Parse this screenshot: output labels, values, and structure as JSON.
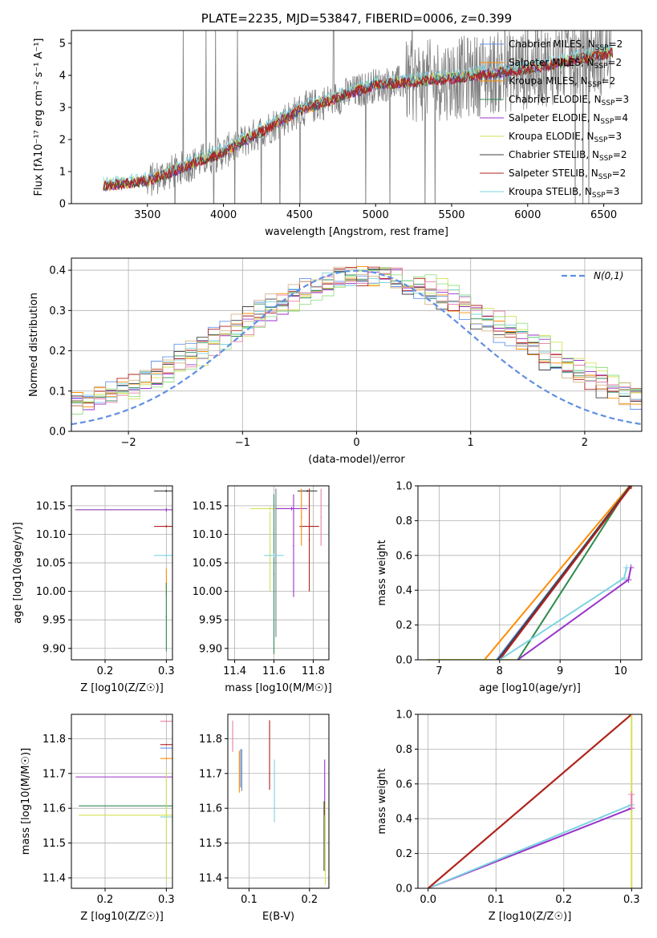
{
  "colors": {
    "series": [
      "#6495ed",
      "#708090",
      "#ff8c00",
      "#2e8b57",
      "#9932cc",
      "#d4e157",
      "#404040",
      "#b22222",
      "#7fd3e0"
    ],
    "spectrum": "#808080",
    "normal_curve": "#6090e0",
    "hist_extra": [
      "#e57fa8",
      "#98e08a",
      "#d2b48c"
    ]
  },
  "chart_data": [
    {
      "id": "spectrum",
      "type": "line",
      "title": "PLATE=2235, MJD=53847, FIBERID=0006, z=0.399",
      "xlabel": "wavelength [Angstrom, rest frame]",
      "ylabel_html": "Flux [fλ10⁻¹⁷ erg cm⁻² s⁻¹ A⁻¹]",
      "xlim": [
        3000,
        6750
      ],
      "ylim": [
        0,
        5.4
      ],
      "xticks": [
        "3500",
        "4000",
        "4500",
        "5000",
        "5500",
        "6000",
        "6500"
      ],
      "yticks": [
        "0",
        "1",
        "2",
        "3",
        "4",
        "5"
      ],
      "legend": [
        {
          "label": "Chabrier MILES, N",
          "sub": "SSP",
          "tail": "=2"
        },
        {
          "label": "Salpeter MILES, N",
          "sub": "SSP",
          "tail": "=2"
        },
        {
          "label": "Kroupa MILES, N",
          "sub": "SSP",
          "tail": "=2"
        },
        {
          "label": "Chabrier ELODIE, N",
          "sub": "SSP",
          "tail": "=3"
        },
        {
          "label": "Salpeter ELODIE, N",
          "sub": "SSP",
          "tail": "=4"
        },
        {
          "label": "Kroupa ELODIE, N",
          "sub": "SSP",
          "tail": "=3"
        },
        {
          "label": "Chabrier STELIB, N",
          "sub": "SSP",
          "tail": "=2"
        },
        {
          "label": "Salpeter STELIB, N",
          "sub": "SSP",
          "tail": "=2"
        },
        {
          "label": "Kroupa STELIB, N",
          "sub": "SSP",
          "tail": "=3"
        }
      ],
      "model_trend": {
        "x": [
          3210,
          3500,
          4000,
          4500,
          5000,
          5500,
          6000,
          6550
        ],
        "y": [
          0.55,
          0.7,
          1.6,
          2.9,
          3.7,
          3.9,
          4.2,
          4.7
        ]
      }
    },
    {
      "id": "residuals",
      "type": "line",
      "xlabel": "(data-model)/error",
      "ylabel": "Normed distribution",
      "xlim": [
        -2.5,
        2.5
      ],
      "ylim": [
        0,
        0.43
      ],
      "xticks": [
        "−2",
        "−1",
        "0",
        "1",
        "2"
      ],
      "yticks": [
        "0.0",
        "0.1",
        "0.2",
        "0.3",
        "0.4"
      ],
      "legend": "N(0,1)",
      "normal": {
        "mu": 0,
        "sigma": 1
      }
    },
    {
      "id": "age-vs-Z",
      "type": "scatter",
      "xlabel": "Z [log10(Z/Z☉)]",
      "ylabel": "age  [log10(age/yr)]",
      "xlim": [
        0.145,
        0.31
      ],
      "ylim": [
        9.88,
        10.185
      ],
      "xticks": [
        "0.2",
        "0.3"
      ],
      "yticks": [
        "9.90",
        "9.95",
        "10.00",
        "10.05",
        "10.10",
        "10.15"
      ],
      "errorbars": [
        {
          "c": 0,
          "x": 0.3,
          "y": 10.143,
          "xerr": 0.15,
          "yerr": 0.003
        },
        {
          "c": 5,
          "x": 0.3,
          "y": 10.143,
          "xerr": 0.15,
          "yerr": 0.003
        },
        {
          "c": 4,
          "x": 0.3,
          "y": 10.143,
          "xerr": 0.148,
          "yerr": 0.003
        },
        {
          "c": 6,
          "x": 0.3,
          "y": 10.176,
          "xerr": 0.02,
          "yerr": 0.002
        },
        {
          "c": 7,
          "x": 0.3,
          "y": 10.114,
          "xerr": 0.02,
          "yerr": 0.002
        },
        {
          "c": 8,
          "x": 0.3,
          "y": 10.063,
          "xerr": 0.02,
          "yerr": 0.002
        },
        {
          "c": 2,
          "x": 0.3,
          "y": 10.015,
          "xerr": 0.001,
          "yerr": 0.025
        },
        {
          "c": 3,
          "x": 0.3,
          "y": 9.955,
          "xerr": 0.001,
          "yerr": 0.06
        }
      ]
    },
    {
      "id": "age-vs-mass",
      "type": "scatter",
      "xlabel": "mass [log10(M/M☉)]",
      "ylabel": "",
      "xlim": [
        11.365,
        11.88
      ],
      "ylim": [
        9.88,
        10.185
      ],
      "xticks": [
        "11.4",
        "11.6",
        "11.8"
      ],
      "yticks": [
        "9.90",
        "9.95",
        "10.00",
        "10.05",
        "10.10",
        "10.15"
      ],
      "errorbars": [
        {
          "c": 5,
          "x": 11.58,
          "y": 10.145,
          "xerr": 0.1,
          "yerr": 0.003
        },
        {
          "c": 4,
          "x": 11.69,
          "y": 10.145,
          "xerr": 0.08,
          "yerr": 0.003
        },
        {
          "c": 1,
          "x": 11.61,
          "y": 10.05,
          "xerr": 0.003,
          "yerr": 0.13
        },
        {
          "c": 3,
          "x": 11.6,
          "y": 10.03,
          "xerr": 0.003,
          "yerr": 0.14
        },
        {
          "c": 5,
          "x": 11.58,
          "y": 10.07,
          "xerr": 0.003,
          "yerr": 0.07
        },
        {
          "c": 8,
          "x": 11.6,
          "y": 10.063,
          "xerr": 0.05,
          "yerr": 0.003
        },
        {
          "c": 4,
          "x": 11.7,
          "y": 10.08,
          "xerr": 0.003,
          "yerr": 0.09
        },
        {
          "c": 6,
          "x": 11.77,
          "y": 10.176,
          "xerr": 0.05,
          "yerr": 0.002
        },
        {
          "c": 7,
          "x": 11.78,
          "y": 10.114,
          "xerr": 0.05,
          "yerr": 0.002
        },
        {
          "c": 7,
          "x": 11.78,
          "y": 10.09,
          "xerr": 0.003,
          "yerr": 0.09
        },
        {
          "c": 9,
          "x": 11.84,
          "y": 10.13,
          "xerr": 0.003,
          "yerr": 0.05
        },
        {
          "c": 2,
          "x": 11.74,
          "y": 10.13,
          "xerr": 0.003,
          "yerr": 0.05
        }
      ]
    },
    {
      "id": "cumweight-vs-age",
      "type": "line",
      "xlabel": "age  [log10(age/yr)]",
      "ylabel": "mass weight",
      "xlim": [
        6.65,
        10.35
      ],
      "ylim": [
        0,
        1.0
      ],
      "xticks": [
        "7",
        "8",
        "9",
        "10"
      ],
      "yticks": [
        "0.0",
        "0.2",
        "0.4",
        "0.6",
        "0.8",
        "1.0"
      ],
      "lines": [
        {
          "c": 2,
          "x": [
            7.0,
            7.75,
            10.15
          ],
          "y": [
            0,
            0,
            1.0
          ]
        },
        {
          "c": 5,
          "x": [
            6.8,
            8.3,
            10.15
          ],
          "y": [
            0,
            0,
            1.0
          ]
        },
        {
          "c": 3,
          "x": [
            8.3,
            10.15
          ],
          "y": [
            0,
            1.0
          ]
        },
        {
          "c": 0,
          "x": [
            7.95,
            10.16
          ],
          "y": [
            0,
            1.0
          ]
        },
        {
          "c": 6,
          "x": [
            7.97,
            10.16
          ],
          "y": [
            0,
            1.0
          ]
        },
        {
          "c": 7,
          "x": [
            8.0,
            10.18
          ],
          "y": [
            0,
            1.0
          ]
        },
        {
          "c": 8,
          "x": [
            8.0,
            10.06
          ],
          "y": [
            0,
            0.47
          ]
        },
        {
          "c": 4,
          "x": [
            8.3,
            10.13
          ],
          "y": [
            0,
            0.46
          ]
        },
        {
          "c": 4,
          "x": [
            10.13,
            10.17
          ],
          "y": [
            0.46,
            0.53
          ]
        },
        {
          "c": 8,
          "x": [
            10.06,
            10.1
          ],
          "y": [
            0.47,
            0.53
          ]
        }
      ]
    },
    {
      "id": "mass-vs-Z",
      "type": "scatter",
      "xlabel": "Z [log10(Z/Z☉)]",
      "ylabel": "mass [log10(M/M☉)]",
      "xlim": [
        0.145,
        0.31
      ],
      "ylim": [
        11.37,
        11.87
      ],
      "xticks": [
        "0.2",
        "0.3"
      ],
      "yticks": [
        "11.4",
        "11.5",
        "11.6",
        "11.7",
        "11.8"
      ],
      "errorbars": [
        {
          "c": 4,
          "x": 0.3,
          "y": 11.69,
          "xerr": 0.148,
          "yerr": 0.003
        },
        {
          "c": 3,
          "x": 0.3,
          "y": 11.607,
          "xerr": 0.143,
          "yerr": 0.003
        },
        {
          "c": 5,
          "x": 0.3,
          "y": 11.58,
          "xerr": 0.143,
          "yerr": 0.003
        },
        {
          "c": 9,
          "x": 0.3,
          "y": 11.85,
          "xerr": 0.01,
          "yerr": 0.002
        },
        {
          "c": 7,
          "x": 0.3,
          "y": 11.783,
          "xerr": 0.01,
          "yerr": 0.002
        },
        {
          "c": 0,
          "x": 0.3,
          "y": 11.773,
          "xerr": 0.01,
          "yerr": 0.002
        },
        {
          "c": 2,
          "x": 0.3,
          "y": 11.743,
          "xerr": 0.01,
          "yerr": 0.002
        },
        {
          "c": 8,
          "x": 0.3,
          "y": 11.575,
          "xerr": 0.01,
          "yerr": 0.002
        },
        {
          "c": 5,
          "x": 0.3,
          "y": 11.55,
          "xerr": 0.001,
          "yerr": 0.16
        }
      ]
    },
    {
      "id": "mass-vs-ebv",
      "type": "scatter",
      "xlabel": "E(B-V)",
      "ylabel": "",
      "xlim": [
        0.065,
        0.232
      ],
      "ylim": [
        11.37,
        11.87
      ],
      "xticks": [
        "0.1",
        "0.2"
      ],
      "yticks": [
        "11.4",
        "11.5",
        "11.6",
        "11.7",
        "11.8"
      ],
      "errorbars": [
        {
          "c": 9,
          "x": 0.073,
          "y": 11.807,
          "xerr": 0.0,
          "yerr": 0.045
        },
        {
          "c": 2,
          "x": 0.084,
          "y": 11.705,
          "xerr": 0.0,
          "yerr": 0.06
        },
        {
          "c": 0,
          "x": 0.086,
          "y": 11.715,
          "xerr": 0.0,
          "yerr": 0.055
        },
        {
          "c": 1,
          "x": 0.088,
          "y": 11.71,
          "xerr": 0.0,
          "yerr": 0.06
        },
        {
          "c": 7,
          "x": 0.134,
          "y": 11.753,
          "xerr": 0.0,
          "yerr": 0.1
        },
        {
          "c": 8,
          "x": 0.142,
          "y": 11.65,
          "xerr": 0.0,
          "yerr": 0.09
        },
        {
          "c": 4,
          "x": 0.225,
          "y": 11.66,
          "xerr": 0.0,
          "yerr": 0.08
        },
        {
          "c": 6,
          "x": 0.224,
          "y": 11.52,
          "xerr": 0.0,
          "yerr": 0.1
        },
        {
          "c": 5,
          "x": 0.226,
          "y": 11.5,
          "xerr": 0.0,
          "yerr": 0.12
        }
      ]
    },
    {
      "id": "cumweight-vs-Z",
      "type": "line",
      "xlabel": "Z [log10(Z/Z☉)]",
      "ylabel": "mass weight",
      "xlim": [
        -0.015,
        0.315
      ],
      "ylim": [
        0,
        1.0
      ],
      "xticks": [
        "0.0",
        "0.1",
        "0.2",
        "0.3"
      ],
      "yticks": [
        "0.0",
        "0.2",
        "0.4",
        "0.6",
        "0.8",
        "1.0"
      ],
      "lines": [
        {
          "c": 4,
          "x": [
            0,
            0.3
          ],
          "y": [
            0,
            0.46
          ]
        },
        {
          "c": 8,
          "x": [
            0,
            0.3
          ],
          "y": [
            0,
            0.48
          ]
        },
        {
          "c": 0,
          "x": [
            0,
            0.3
          ],
          "y": [
            0,
            1.0
          ]
        },
        {
          "c": 6,
          "x": [
            0,
            0.3
          ],
          "y": [
            0,
            1.0
          ]
        },
        {
          "c": 2,
          "x": [
            0,
            0.3
          ],
          "y": [
            0,
            1.0
          ]
        },
        {
          "c": 7,
          "x": [
            0,
            0.3
          ],
          "y": [
            0,
            1.0
          ]
        },
        {
          "c": 5,
          "x": [
            0.3,
            0.3
          ],
          "y": [
            0,
            1.0
          ]
        },
        {
          "c": 9,
          "x": [
            0.3,
            0.3
          ],
          "y": [
            0.45,
            0.54
          ]
        }
      ]
    }
  ]
}
